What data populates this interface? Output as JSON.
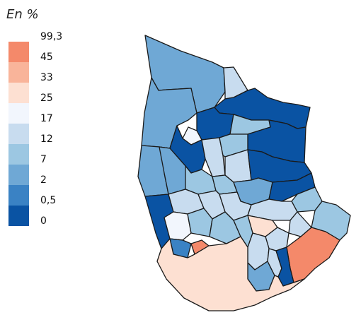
{
  "legend": {
    "title": "En %",
    "breaks": [
      "99,3",
      "45",
      "33",
      "25",
      "17",
      "12",
      "7",
      "2",
      "0,5",
      "0"
    ],
    "colors": [
      "#f4896a",
      "#f9b49a",
      "#fde0d2",
      "#f2f6fd",
      "#c8dcef",
      "#9cc7e2",
      "#6fa8d5",
      "#3a82c4",
      "#0a53a3"
    ]
  },
  "classes": {
    "c0": "#0a53a3",
    "c05": "#3a82c4",
    "c2": "#6fa8d5",
    "c7": "#9cc7e2",
    "c12": "#c8dcef",
    "c17": "#f2f6fd",
    "c25": "#fde0d2",
    "c33": "#f9b49a",
    "c45": "#f4896a"
  }
}
